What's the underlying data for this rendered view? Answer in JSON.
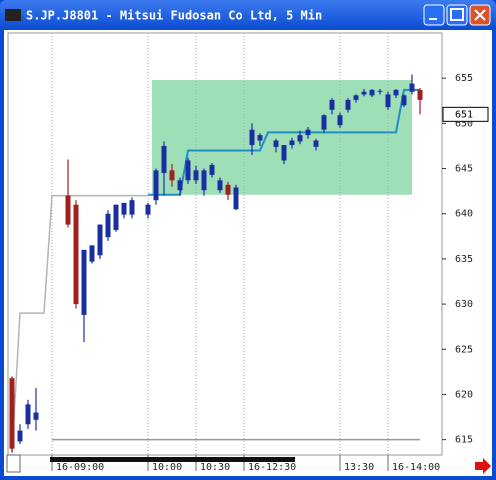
{
  "chart_data": {
    "type": "candlestick",
    "title": "S.JP.J8801 - Mitsui Fudosan Co Ltd, 5 Min",
    "categories": [
      null,
      null,
      null,
      null,
      null,
      "16-09:00",
      null,
      null,
      null,
      null,
      null,
      null,
      null,
      null,
      null,
      null,
      null,
      "10:00",
      null,
      null,
      null,
      null,
      null,
      "10:30",
      null,
      null,
      null,
      null,
      null,
      "16-12:30",
      null,
      null,
      null,
      null,
      null,
      null,
      null,
      null,
      null,
      null,
      null,
      "13:30",
      null,
      null,
      null,
      null,
      null,
      "16-14:00",
      null,
      null,
      null,
      null
    ],
    "open": [
      621.8,
      614.8,
      616.7,
      617.2,
      null,
      null,
      null,
      642,
      641,
      628.8,
      634.7,
      635.4,
      637.4,
      638.2,
      639.9,
      639.9,
      null,
      639.9,
      641.5,
      644.5,
      644.8,
      642.6,
      643.7,
      643.7,
      642.6,
      644.3,
      642.6,
      643.2,
      640.5,
      null,
      647.6,
      648.1,
      null,
      647.4,
      645.9,
      647.6,
      648,
      648.7,
      647.4,
      649.3,
      651.5,
      649.8,
      651.5,
      652.6,
      653.2,
      653.1,
      653.5,
      651.8,
      653.1,
      652,
      653.5,
      653.7
    ],
    "high": [
      622,
      616.7,
      619.4,
      620.7,
      null,
      null,
      null,
      646,
      641.5,
      636,
      636.5,
      638.8,
      640.4,
      641,
      641.2,
      641.8,
      null,
      641.2,
      645,
      648,
      645.5,
      644,
      646.2,
      645.3,
      645,
      645.6,
      644,
      643.5,
      643.2,
      null,
      650,
      648.9,
      null,
      648.3,
      647.6,
      648.4,
      649.2,
      649.6,
      648.3,
      651,
      652.8,
      651.2,
      652.8,
      653.2,
      653.8,
      653.8,
      653.8,
      653.5,
      653.8,
      653.2,
      655.4,
      653.9
    ],
    "low": [
      613.6,
      614.5,
      616.2,
      616,
      null,
      null,
      null,
      638.5,
      629.5,
      625.8,
      634.5,
      635,
      637,
      638,
      639.5,
      639.5,
      null,
      639.5,
      641,
      642,
      643,
      642,
      643.3,
      643.3,
      642,
      644,
      642.3,
      641.5,
      640.4,
      null,
      646.5,
      647.5,
      null,
      646.8,
      645.5,
      647.2,
      647.7,
      648.3,
      647,
      649,
      651,
      649.5,
      651.2,
      652.3,
      653,
      652.9,
      653.2,
      651.5,
      652.8,
      651.8,
      653.2,
      651
    ],
    "close": [
      614,
      616,
      618.9,
      618,
      null,
      null,
      null,
      638.8,
      630,
      636,
      636.5,
      638.8,
      640,
      641,
      641.2,
      641.5,
      null,
      641,
      644.8,
      647.5,
      643.7,
      643.7,
      645.9,
      644.8,
      644.8,
      645.4,
      643.7,
      642.1,
      642.9,
      null,
      649.3,
      648.7,
      null,
      648.1,
      647.6,
      648.1,
      648.7,
      649.3,
      648.1,
      650.9,
      652.6,
      650.9,
      652.6,
      653.1,
      653.5,
      653.7,
      653.6,
      653.2,
      653.7,
      653.1,
      654.4,
      652.6
    ],
    "up_color": "#1a2fa0",
    "down_color": "#a02020",
    "lines": [
      {
        "color": "#1e8fc8",
        "values": [
          null,
          null,
          null,
          null,
          null,
          null,
          null,
          null,
          null,
          null,
          null,
          null,
          null,
          null,
          null,
          null,
          null,
          642.1,
          642.1,
          642.1,
          642.1,
          642.1,
          647,
          647,
          647,
          647,
          647,
          647,
          647,
          647,
          647,
          647,
          649,
          649,
          649,
          649,
          649,
          649,
          649,
          649,
          649,
          649,
          649,
          649,
          649,
          649,
          649,
          649,
          649,
          653.7,
          653.7,
          653.7
        ]
      },
      {
        "color": "#b4b4b4",
        "values": [
          613.5,
          629,
          629,
          629,
          629,
          642,
          642,
          642,
          642,
          642,
          642,
          642,
          642,
          642,
          642,
          642,
          642,
          642,
          null,
          null,
          null,
          null,
          null,
          null,
          null,
          null,
          null,
          null,
          null,
          null,
          null,
          null,
          null,
          null,
          null,
          null,
          null,
          null,
          null,
          null,
          null,
          null,
          null,
          null,
          null,
          null,
          null,
          null,
          null,
          null,
          null,
          null
        ]
      },
      {
        "color": "#9a9a9a",
        "values": [
          null,
          null,
          null,
          null,
          null,
          615,
          615,
          615,
          615,
          615,
          615,
          615,
          615,
          615,
          615,
          615,
          615,
          615,
          615,
          615,
          615,
          615,
          615,
          615,
          615,
          615,
          615,
          615,
          615,
          615,
          615,
          615,
          615,
          615,
          615,
          615,
          615,
          615,
          615,
          615,
          615,
          615,
          615,
          615,
          615,
          615,
          615,
          615,
          615,
          615,
          615,
          615
        ]
      }
    ],
    "band": {
      "xlim": [
        17.5,
        50
      ],
      "ylim": [
        642.1,
        654.8
      ],
      "color": "#7fd4a0"
    },
    "ylim": [
      613.3,
      660
    ],
    "yticks": [
      615,
      620,
      625,
      630,
      635,
      640,
      645,
      650,
      655
    ],
    "last_price": 651,
    "grid": true
  }
}
